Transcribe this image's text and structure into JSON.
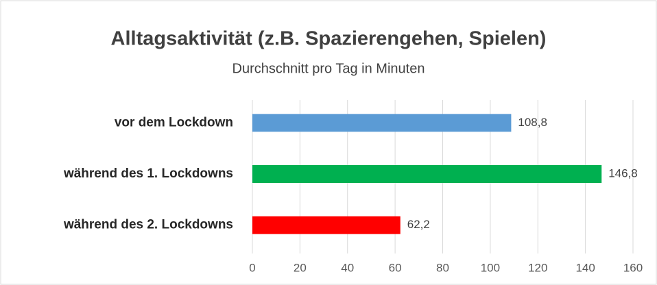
{
  "chart_data": {
    "type": "bar",
    "orientation": "horizontal",
    "title": "Alltagsaktivität (z.B. Spazierengehen, Spielen)",
    "subtitle": "Durchschnitt pro Tag in Minuten",
    "categories": [
      "vor dem Lockdown",
      "während des 1. Lockdowns",
      "während des 2. Lockdowns"
    ],
    "values": [
      108.8,
      146.8,
      62.2
    ],
    "value_labels": [
      "108,8",
      "146,8",
      "62,2"
    ],
    "colors": [
      "#5b9bd5",
      "#00b050",
      "#ff0000"
    ],
    "xlim": [
      0,
      160
    ],
    "xticks": [
      0,
      20,
      40,
      60,
      80,
      100,
      120,
      140,
      160
    ],
    "grid": true
  }
}
